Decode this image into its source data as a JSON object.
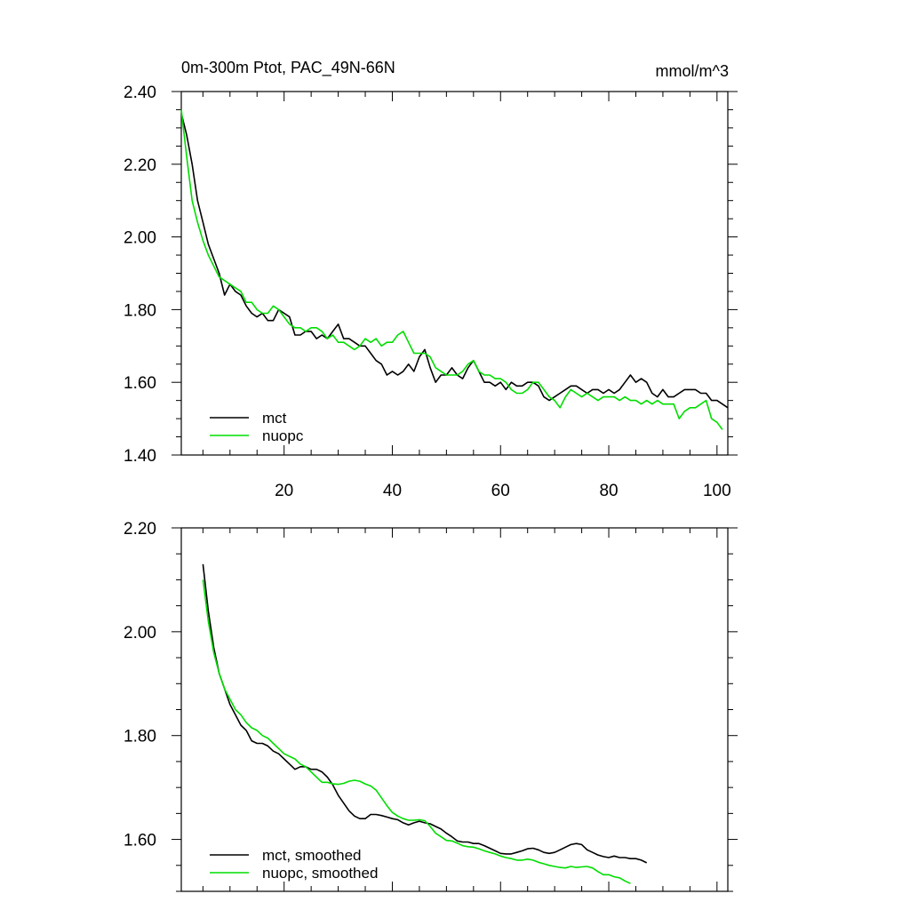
{
  "chart_data": [
    {
      "type": "line",
      "title_left": "0m-300m Ptot, PAC_49N-66N",
      "title_right": "mmol/m^3",
      "xlim": [
        1,
        102
      ],
      "ylim": [
        1.4,
        2.4
      ],
      "x_ticks": [
        20,
        40,
        60,
        80,
        100
      ],
      "y_ticks": [
        1.4,
        1.6,
        1.8,
        2.0,
        2.2,
        2.4
      ],
      "y_tick_labels": [
        "1.40",
        "1.60",
        "1.80",
        "2.00",
        "2.20",
        "2.40"
      ],
      "legend": "bottom-left",
      "series": [
        {
          "name": "mct",
          "color": "#000000",
          "x_start": 1,
          "values": [
            2.34,
            2.28,
            2.2,
            2.1,
            2.04,
            1.98,
            1.94,
            1.9,
            1.84,
            1.87,
            1.85,
            1.84,
            1.81,
            1.79,
            1.78,
            1.79,
            1.77,
            1.77,
            1.8,
            1.79,
            1.78,
            1.73,
            1.73,
            1.74,
            1.74,
            1.72,
            1.73,
            1.72,
            1.74,
            1.76,
            1.72,
            1.72,
            1.71,
            1.7,
            1.7,
            1.68,
            1.66,
            1.65,
            1.62,
            1.63,
            1.62,
            1.63,
            1.65,
            1.63,
            1.67,
            1.69,
            1.64,
            1.6,
            1.62,
            1.62,
            1.64,
            1.62,
            1.61,
            1.64,
            1.66,
            1.63,
            1.6,
            1.6,
            1.59,
            1.6,
            1.58,
            1.6,
            1.59,
            1.59,
            1.6,
            1.6,
            1.59,
            1.56,
            1.55,
            1.56,
            1.57,
            1.58,
            1.59,
            1.59,
            1.58,
            1.57,
            1.58,
            1.58,
            1.57,
            1.58,
            1.57,
            1.58,
            1.6,
            1.62,
            1.6,
            1.61,
            1.6,
            1.57,
            1.56,
            1.58,
            1.56,
            1.56,
            1.57,
            1.58,
            1.58,
            1.58,
            1.57,
            1.57,
            1.55,
            1.55,
            1.54,
            1.53
          ]
        },
        {
          "name": "nuopc",
          "color": "#00dd00",
          "x_start": 1,
          "values": [
            2.35,
            2.22,
            2.1,
            2.04,
            1.99,
            1.95,
            1.92,
            1.89,
            1.88,
            1.87,
            1.86,
            1.85,
            1.82,
            1.82,
            1.8,
            1.79,
            1.79,
            1.81,
            1.8,
            1.78,
            1.76,
            1.75,
            1.75,
            1.74,
            1.75,
            1.75,
            1.74,
            1.72,
            1.73,
            1.71,
            1.71,
            1.7,
            1.69,
            1.7,
            1.72,
            1.71,
            1.72,
            1.7,
            1.71,
            1.71,
            1.73,
            1.74,
            1.71,
            1.68,
            1.68,
            1.68,
            1.67,
            1.64,
            1.63,
            1.62,
            1.62,
            1.62,
            1.63,
            1.65,
            1.66,
            1.63,
            1.62,
            1.62,
            1.61,
            1.61,
            1.6,
            1.58,
            1.57,
            1.57,
            1.58,
            1.6,
            1.6,
            1.58,
            1.56,
            1.55,
            1.53,
            1.56,
            1.58,
            1.57,
            1.56,
            1.57,
            1.56,
            1.55,
            1.56,
            1.56,
            1.56,
            1.55,
            1.56,
            1.55,
            1.55,
            1.54,
            1.55,
            1.54,
            1.55,
            1.54,
            1.54,
            1.54,
            1.5,
            1.52,
            1.53,
            1.53,
            1.54,
            1.55,
            1.5,
            1.49,
            1.47
          ]
        }
      ]
    },
    {
      "type": "line",
      "xlim": [
        1,
        102
      ],
      "ylim": [
        1.5,
        2.2
      ],
      "x_ticks": [
        20,
        40,
        60,
        80,
        100
      ],
      "y_ticks": [
        1.6,
        1.8,
        2.0,
        2.2
      ],
      "y_tick_labels": [
        "1.60",
        "1.80",
        "2.00",
        "2.20"
      ],
      "legend": "bottom-left",
      "series": [
        {
          "name": "mct, smoothed",
          "color": "#000000",
          "x_start": 5,
          "values": [
            2.13,
            2.04,
            1.97,
            1.92,
            1.89,
            1.86,
            1.84,
            1.82,
            1.81,
            1.79,
            1.785,
            1.785,
            1.78,
            1.77,
            1.765,
            1.755,
            1.745,
            1.735,
            1.74,
            1.74,
            1.735,
            1.735,
            1.73,
            1.72,
            1.705,
            1.685,
            1.67,
            1.655,
            1.645,
            1.64,
            1.64,
            1.648,
            1.648,
            1.646,
            1.643,
            1.64,
            1.638,
            1.632,
            1.628,
            1.632,
            1.635,
            1.632,
            1.63,
            1.625,
            1.62,
            1.612,
            1.605,
            1.597,
            1.595,
            1.595,
            1.592,
            1.592,
            1.588,
            1.583,
            1.578,
            1.573,
            1.572,
            1.572,
            1.575,
            1.578,
            1.582,
            1.583,
            1.58,
            1.575,
            1.573,
            1.575,
            1.58,
            1.585,
            1.59,
            1.592,
            1.59,
            1.58,
            1.575,
            1.57,
            1.567,
            1.565,
            1.568,
            1.565,
            1.565,
            1.563,
            1.563,
            1.56,
            1.555
          ]
        },
        {
          "name": "nuopc, smoothed",
          "color": "#00dd00",
          "x_start": 5,
          "values": [
            2.1,
            2.02,
            1.96,
            1.92,
            1.89,
            1.87,
            1.85,
            1.84,
            1.825,
            1.815,
            1.81,
            1.8,
            1.795,
            1.785,
            1.775,
            1.765,
            1.76,
            1.755,
            1.745,
            1.74,
            1.73,
            1.72,
            1.71,
            1.71,
            1.707,
            1.706,
            1.708,
            1.712,
            1.714,
            1.712,
            1.707,
            1.703,
            1.695,
            1.68,
            1.665,
            1.652,
            1.645,
            1.64,
            1.637,
            1.637,
            1.638,
            1.636,
            1.625,
            1.612,
            1.605,
            1.598,
            1.597,
            1.593,
            1.588,
            1.586,
            1.585,
            1.582,
            1.578,
            1.575,
            1.572,
            1.568,
            1.565,
            1.563,
            1.56,
            1.56,
            1.562,
            1.56,
            1.556,
            1.553,
            1.55,
            1.548,
            1.546,
            1.545,
            1.548,
            1.546,
            1.547,
            1.548,
            1.545,
            1.538,
            1.532,
            1.532,
            1.528,
            1.526,
            1.52,
            1.515
          ]
        }
      ]
    }
  ]
}
